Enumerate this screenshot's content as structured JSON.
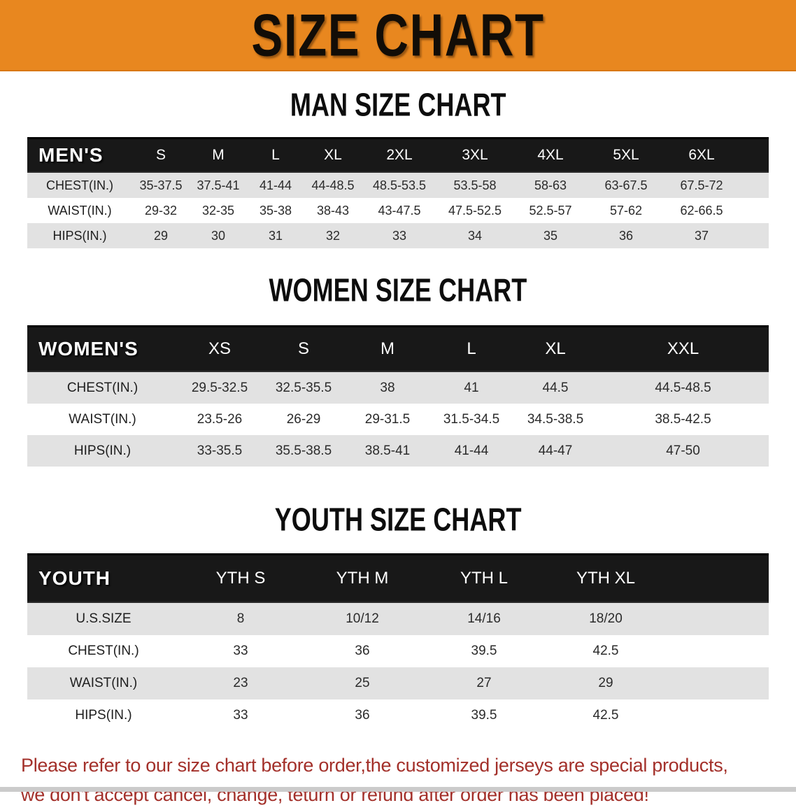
{
  "banner": {
    "title": "SIZE CHART"
  },
  "colors": {
    "banner_bg": "#E8871F",
    "table_header_bg": "#181818",
    "row_alt_bg": "#E2E2E2",
    "note_text": "#A3302A",
    "bottom_strip": "#CBCBCB"
  },
  "sections": [
    {
      "heading": "MAN SIZE CHART",
      "table": {
        "label": "MEN'S",
        "columns": [
          "S",
          "M",
          "L",
          "XL",
          "2XL",
          "3XL",
          "4XL",
          "5XL",
          "6XL"
        ],
        "rows": [
          {
            "label": "CHEST(IN.)",
            "values": [
              "35-37.5",
              "37.5-41",
              "41-44",
              "44-48.5",
              "48.5-53.5",
              "53.5-58",
              "58-63",
              "63-67.5",
              "67.5-72"
            ]
          },
          {
            "label": "WAIST(IN.)",
            "values": [
              "29-32",
              "32-35",
              "35-38",
              "38-43",
              "43-47.5",
              "47.5-52.5",
              "52.5-57",
              "57-62",
              "62-66.5"
            ]
          },
          {
            "label": "HIPS(IN.)",
            "values": [
              "29",
              "30",
              "31",
              "32",
              "33",
              "34",
              "35",
              "36",
              "37"
            ]
          }
        ]
      }
    },
    {
      "heading": "WOMEN SIZE CHART",
      "table": {
        "label": "WOMEN'S",
        "columns": [
          "XS",
          "S",
          "M",
          "L",
          "XL",
          "XXL"
        ],
        "rows": [
          {
            "label": "CHEST(IN.)",
            "values": [
              "29.5-32.5",
              "32.5-35.5",
              "38",
              "41",
              "44.5",
              "44.5-48.5"
            ]
          },
          {
            "label": "WAIST(IN.)",
            "values": [
              "23.5-26",
              "26-29",
              "29-31.5",
              "31.5-34.5",
              "34.5-38.5",
              "38.5-42.5"
            ]
          },
          {
            "label": "HIPS(IN.)",
            "values": [
              "33-35.5",
              "35.5-38.5",
              "38.5-41",
              "41-44",
              "44-47",
              "47-50"
            ]
          }
        ]
      }
    },
    {
      "heading": "YOUTH SIZE CHART",
      "table": {
        "label": "YOUTH",
        "columns": [
          "YTH S",
          "YTH M",
          "YTH L",
          "YTH XL"
        ],
        "rows": [
          {
            "label": "U.S.SIZE",
            "values": [
              "8",
              "10/12",
              "14/16",
              "18/20"
            ]
          },
          {
            "label": "CHEST(IN.)",
            "values": [
              "33",
              "36",
              "39.5",
              "42.5"
            ]
          },
          {
            "label": "WAIST(IN.)",
            "values": [
              "23",
              "25",
              "27",
              "29"
            ]
          },
          {
            "label": "HIPS(IN.)",
            "values": [
              "33",
              "36",
              "39.5",
              "42.5"
            ]
          }
        ]
      }
    }
  ],
  "note": {
    "line1": "Please refer to our size chart before order,the customized jerseys are special products,",
    "line2": "we don't accept cancel, change, teturn or refund after order has been placed!"
  }
}
